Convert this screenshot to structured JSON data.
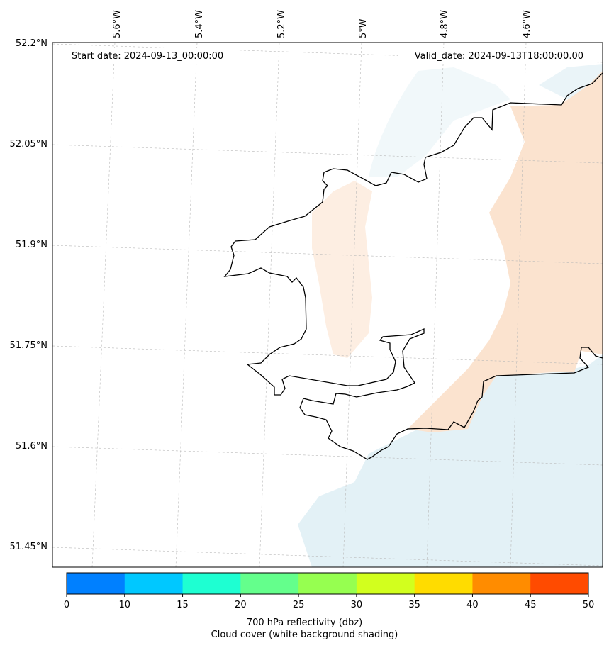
{
  "header": {
    "start_date": "Start date: 2024-09-13_00:00:00",
    "valid_date": "Valid_date: 2024-09-13T18:00:00.00"
  },
  "lon_labels": [
    "5.6°W",
    "5.4°W",
    "5.2°W",
    "5°W",
    "4.8°W",
    "4.6°W"
  ],
  "lat_labels": [
    "52.2°N",
    "52.05°N",
    "51.9°N",
    "51.75°N",
    "51.6°N",
    "51.45°N"
  ],
  "colorbar": {
    "ticks": [
      "0",
      "10",
      "15",
      "20",
      "25",
      "30",
      "35",
      "40",
      "45",
      "50"
    ],
    "colors": [
      "#0080ff",
      "#00c8ff",
      "#1effd2",
      "#64ff8c",
      "#96ff50",
      "#d2ff1e",
      "#ffdc00",
      "#ff8c00",
      "#ff4b00"
    ],
    "label_line1": "700 hPa reflectivity (dbz)",
    "label_line2": "Cloud cover (white background shading)"
  },
  "shading": {
    "warm_color": "#fbe3cf",
    "cool_color": "#e3f1f6"
  }
}
